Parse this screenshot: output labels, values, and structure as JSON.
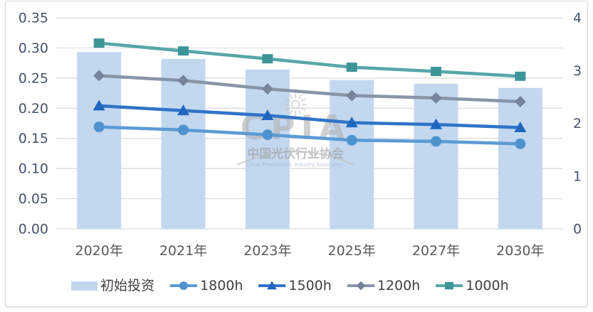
{
  "watermark": {
    "logo_text": "CPIA",
    "cn_text": "中国光伏行业协会",
    "en_text": "China Photovoltaic Industry Association"
  },
  "chart_data": {
    "type": "bar",
    "subtype": "bar-line-combo",
    "title": "",
    "categories": [
      "2020年",
      "2021年",
      "2023年",
      "2025年",
      "2027年",
      "2030年"
    ],
    "grid": true,
    "legend_position": "bottom",
    "left_axis": {
      "min": 0,
      "max": 0.35,
      "step": 0.05,
      "tick_labels": [
        "0.00",
        "0.05",
        "0.10",
        "0.15",
        "0.20",
        "0.25",
        "0.30",
        "0.35"
      ],
      "color": "#44546a"
    },
    "right_axis": {
      "min": 0,
      "max": 4,
      "step": 1,
      "tick_labels": [
        "0",
        "1",
        "2",
        "3",
        "4"
      ],
      "color": "#44546a"
    },
    "series": [
      {
        "name": "初始投资",
        "kind": "bar",
        "axis": "right",
        "color": "#c3d7ef",
        "values": [
          3.35,
          3.22,
          3.02,
          2.82,
          2.75,
          2.67
        ]
      },
      {
        "name": "1800h",
        "kind": "line",
        "axis": "left",
        "marker": "circle",
        "color": "#5b9bd5",
        "marker_color": "#4e93cf",
        "values": [
          0.169,
          0.164,
          0.156,
          0.147,
          0.145,
          0.141
        ]
      },
      {
        "name": "1500h",
        "kind": "line",
        "axis": "left",
        "marker": "triangle",
        "color": "#2e74c8",
        "marker_color": "#1f66bf",
        "values": [
          0.204,
          0.196,
          0.188,
          0.176,
          0.173,
          0.168
        ]
      },
      {
        "name": "1200h",
        "kind": "line",
        "axis": "left",
        "marker": "diamond",
        "color": "#8795a9",
        "marker_color": "#76849a",
        "values": [
          0.254,
          0.246,
          0.232,
          0.221,
          0.217,
          0.211
        ]
      },
      {
        "name": "1000h",
        "kind": "line",
        "axis": "left",
        "marker": "square",
        "color": "#57a6a8",
        "marker_color": "#3e9598",
        "values": [
          0.308,
          0.295,
          0.282,
          0.268,
          0.261,
          0.253
        ]
      }
    ],
    "xlabel": "",
    "ylabel_left": "",
    "ylabel_right": ""
  },
  "colors": {
    "gridline": "#d9d9d9",
    "x_tick_text": "#595959",
    "watermark_gray": "#b3b3b3",
    "watermark_en_blue": "#8fa8c8"
  }
}
